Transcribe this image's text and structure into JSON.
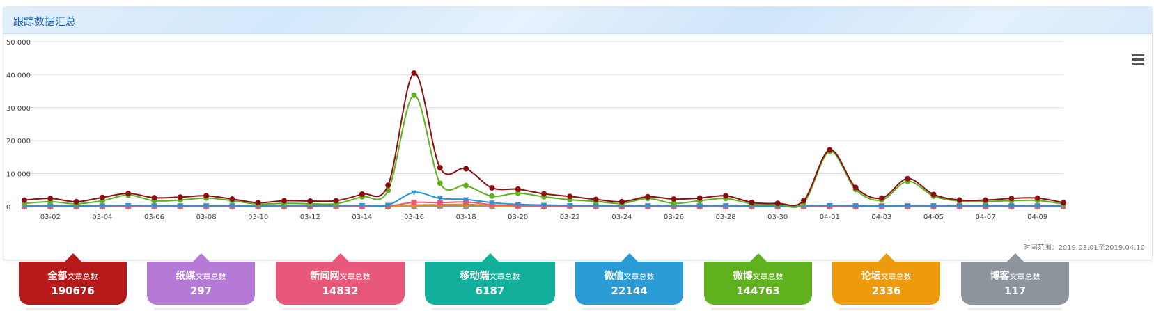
{
  "panel": {
    "title": "跟踪数据汇总"
  },
  "range_note": "时间范围：2019.03.01至2019.04.10",
  "chart_data": {
    "type": "line",
    "x": [
      "03-01",
      "03-02",
      "03-03",
      "03-04",
      "03-05",
      "03-06",
      "03-07",
      "03-08",
      "03-09",
      "03-10",
      "03-11",
      "03-12",
      "03-13",
      "03-14",
      "03-15",
      "03-16",
      "03-17",
      "03-18",
      "03-19",
      "03-20",
      "03-21",
      "03-22",
      "03-23",
      "03-24",
      "03-25",
      "03-26",
      "03-27",
      "03-28",
      "03-29",
      "03-30",
      "03-31",
      "04-01",
      "04-02",
      "04-03",
      "04-04",
      "04-05",
      "04-06",
      "04-07",
      "04-08",
      "04-09",
      "04-10"
    ],
    "x_tick_labels": [
      "03-02",
      "03-04",
      "03-06",
      "03-08",
      "03-10",
      "03-12",
      "03-14",
      "03-16",
      "03-18",
      "03-20",
      "03-22",
      "03-24",
      "03-26",
      "03-28",
      "03-30",
      "04-01",
      "04-03",
      "04-05",
      "04-07",
      "04-09"
    ],
    "y_ticks": [
      "0",
      "10 000",
      "20 000",
      "30 000",
      "40 000",
      "50 000"
    ],
    "ylim": [
      0,
      50000
    ],
    "grid": true,
    "series": [
      {
        "color": "#8b0f12",
        "marker": "circle",
        "values": [
          2000,
          2500,
          1500,
          2800,
          4000,
          2700,
          2900,
          3300,
          2300,
          1200,
          1800,
          1700,
          1800,
          3800,
          6500,
          40500,
          11800,
          11500,
          5700,
          5300,
          3900,
          3100,
          2200,
          1500,
          3000,
          2300,
          2600,
          3300,
          1300,
          1000,
          1800,
          17200,
          5800,
          2600,
          8500,
          3700,
          2000,
          2000,
          2500,
          2600,
          1200
        ]
      },
      {
        "color": "#5fb21e",
        "marker": "circle",
        "values": [
          1000,
          1500,
          900,
          1800,
          3500,
          1800,
          2000,
          2600,
          1800,
          800,
          1000,
          900,
          900,
          3000,
          4900,
          33800,
          7100,
          6400,
          3200,
          4100,
          3000,
          2100,
          1600,
          1000,
          2500,
          1000,
          1800,
          2500,
          900,
          700,
          1100,
          16700,
          5200,
          2000,
          7700,
          3200,
          1700,
          1600,
          1800,
          1900,
          800
        ]
      },
      {
        "color": "#2196d6",
        "marker": "triangle-down",
        "values": [
          200,
          300,
          200,
          300,
          400,
          300,
          300,
          300,
          300,
          200,
          300,
          300,
          300,
          400,
          500,
          4300,
          2500,
          2200,
          1200,
          700,
          500,
          400,
          300,
          300,
          300,
          300,
          300,
          300,
          200,
          200,
          300,
          400,
          300,
          200,
          300,
          300,
          300,
          300,
          300,
          300,
          200
        ]
      },
      {
        "color": "#e65a7a",
        "marker": "square",
        "values": [
          100,
          100,
          100,
          100,
          100,
          100,
          100,
          100,
          100,
          100,
          100,
          100,
          100,
          100,
          200,
          1300,
          1200,
          1400,
          600,
          300,
          200,
          200,
          100,
          100,
          100,
          100,
          100,
          100,
          100,
          100,
          100,
          100,
          100,
          100,
          100,
          100,
          100,
          100,
          100,
          100,
          100
        ]
      },
      {
        "color": "#e8920a",
        "marker": "circle",
        "values": [
          50,
          50,
          50,
          50,
          50,
          50,
          50,
          50,
          50,
          50,
          50,
          50,
          50,
          50,
          80,
          500,
          600,
          700,
          300,
          150,
          100,
          80,
          50,
          50,
          50,
          50,
          50,
          50,
          50,
          50,
          50,
          80,
          60,
          50,
          60,
          50,
          50,
          50,
          50,
          50,
          50
        ]
      },
      {
        "color": "#8d949c",
        "marker": "square",
        "values": [
          200,
          200,
          200,
          200,
          200,
          200,
          200,
          200,
          200,
          200,
          200,
          200,
          200,
          200,
          200,
          200,
          200,
          200,
          200,
          200,
          200,
          200,
          200,
          200,
          200,
          200,
          200,
          200,
          200,
          200,
          200,
          200,
          200,
          200,
          200,
          200,
          200,
          200,
          200,
          200,
          200
        ]
      }
    ]
  },
  "stats": [
    {
      "name": "全部",
      "suffix": "文章总数",
      "value": "190676",
      "color": "#b51919"
    },
    {
      "name": "纸媒",
      "suffix": "文章总数",
      "value": "297",
      "color": "#b57ad6"
    },
    {
      "name": "新闻网",
      "suffix": "文章总数",
      "value": "14832",
      "color": "#e8587a"
    },
    {
      "name": "移动端",
      "suffix": "文章总数",
      "value": "6187",
      "color": "#12b09a"
    },
    {
      "name": "微信",
      "suffix": "文章总数",
      "value": "22144",
      "color": "#2a9bd4"
    },
    {
      "name": "微博",
      "suffix": "文章总数",
      "value": "144763",
      "color": "#5fb21e"
    },
    {
      "name": "论坛",
      "suffix": "文章总数",
      "value": "2336",
      "color": "#ed9a0d"
    },
    {
      "name": "博客",
      "suffix": "文章总数",
      "value": "117",
      "color": "#8d949c"
    }
  ]
}
